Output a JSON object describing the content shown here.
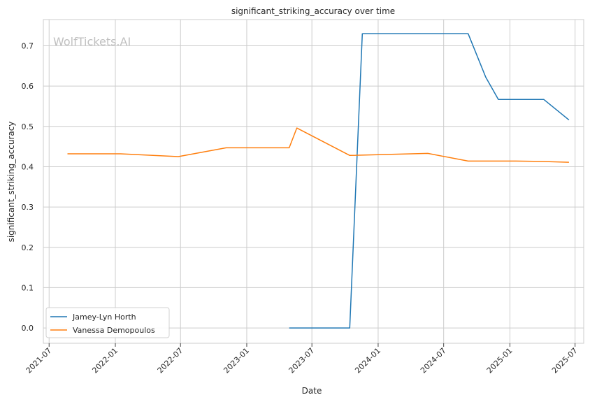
{
  "chart_data": {
    "type": "line",
    "title": "significant_striking_accuracy over time",
    "xlabel": "Date",
    "ylabel": "significant_striking_accuracy",
    "watermark": "WolfTickets.AI",
    "x_ticks": [
      "2021-07",
      "2022-01",
      "2022-07",
      "2023-01",
      "2023-07",
      "2024-01",
      "2024-07",
      "2025-01",
      "2025-07"
    ],
    "y_ticks": [
      "0.0",
      "0.1",
      "0.2",
      "0.3",
      "0.4",
      "0.5",
      "0.6",
      "0.7"
    ],
    "xlim": [
      "2021-06-15",
      "2025-07-25"
    ],
    "ylim": [
      -0.038,
      0.765
    ],
    "grid": true,
    "legend_position": "lower-left",
    "series": [
      {
        "name": "Jamey-Lyn Horth",
        "color": "#1f77b4",
        "points": [
          {
            "x": "2023-04-29",
            "y": 0.0
          },
          {
            "x": "2023-10-14",
            "y": 0.0
          },
          {
            "x": "2023-11-18",
            "y": 0.73
          },
          {
            "x": "2024-09-07",
            "y": 0.73
          },
          {
            "x": "2024-10-26",
            "y": 0.622
          },
          {
            "x": "2024-11-30",
            "y": 0.567
          },
          {
            "x": "2025-04-05",
            "y": 0.567
          },
          {
            "x": "2025-06-14",
            "y": 0.516
          }
        ]
      },
      {
        "name": "Vanessa Demopoulos",
        "color": "#ff7f0e",
        "points": [
          {
            "x": "2021-08-21",
            "y": 0.432
          },
          {
            "x": "2022-01-15",
            "y": 0.432
          },
          {
            "x": "2022-06-25",
            "y": 0.425
          },
          {
            "x": "2022-11-05",
            "y": 0.447
          },
          {
            "x": "2023-04-29",
            "y": 0.447
          },
          {
            "x": "2023-05-20",
            "y": 0.496
          },
          {
            "x": "2023-10-14",
            "y": 0.428
          },
          {
            "x": "2024-05-18",
            "y": 0.433
          },
          {
            "x": "2024-09-07",
            "y": 0.414
          },
          {
            "x": "2025-01-18",
            "y": 0.414
          },
          {
            "x": "2025-04-05",
            "y": 0.413
          },
          {
            "x": "2025-06-14",
            "y": 0.411
          }
        ]
      }
    ]
  }
}
